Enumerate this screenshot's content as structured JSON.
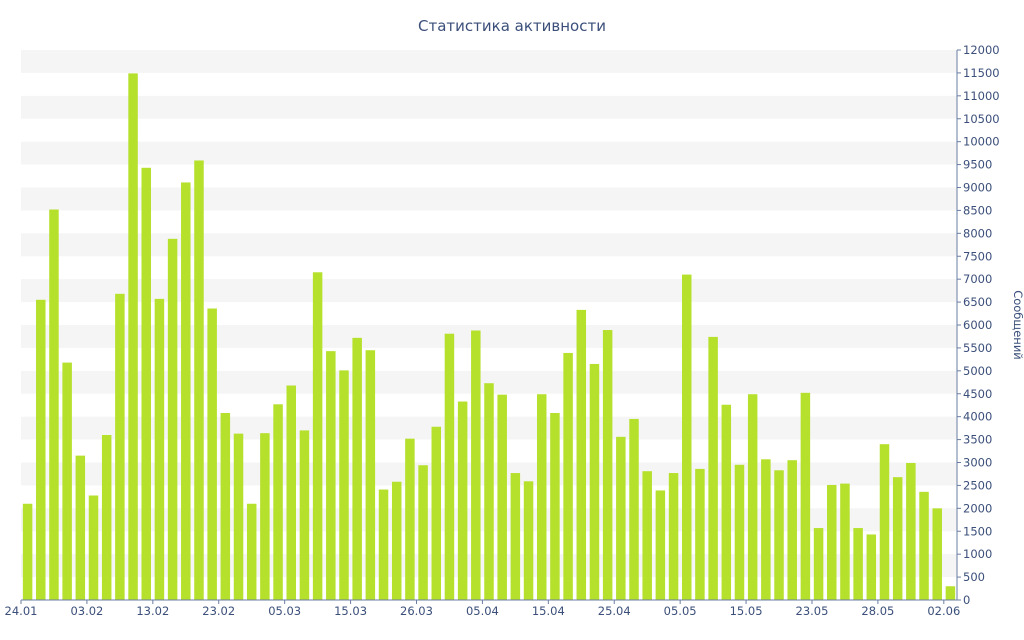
{
  "chart_data": {
    "type": "bar",
    "title": "Статистика активности",
    "xlabel": "",
    "ylabel": "Сообщений",
    "y_axis_side": "right",
    "ylim": [
      0,
      12000
    ],
    "ytick_step": 500,
    "grid": "horizontal bands",
    "x_tick_labels": [
      {
        "index": 0,
        "label": "24.01"
      },
      {
        "index": 5,
        "label": "03.02"
      },
      {
        "index": 10,
        "label": "13.02"
      },
      {
        "index": 15,
        "label": "23.02"
      },
      {
        "index": 20,
        "label": "05.03"
      },
      {
        "index": 25,
        "label": "15.03"
      },
      {
        "index": 30,
        "label": "26.03"
      },
      {
        "index": 35,
        "label": "05.04"
      },
      {
        "index": 40,
        "label": "15.04"
      },
      {
        "index": 45,
        "label": "25.04"
      },
      {
        "index": 50,
        "label": "05.05"
      },
      {
        "index": 55,
        "label": "15.05"
      },
      {
        "index": 60,
        "label": "23.05"
      },
      {
        "index": 65,
        "label": "28.05"
      },
      {
        "index": 70,
        "label": "02.06"
      }
    ],
    "values": [
      2100,
      6550,
      8520,
      5180,
      3150,
      2280,
      3600,
      6680,
      11490,
      9430,
      6570,
      7880,
      9110,
      9590,
      6360,
      4080,
      3630,
      2100,
      3640,
      4270,
      4680,
      3700,
      7150,
      5430,
      5010,
      5720,
      5450,
      2410,
      2580,
      3520,
      2940,
      3780,
      5810,
      4330,
      5880,
      4730,
      4480,
      2770,
      2590,
      4490,
      4080,
      5390,
      6330,
      5150,
      5890,
      3560,
      3950,
      2810,
      2390,
      2770,
      7100,
      2860,
      5740,
      4260,
      2950,
      4490,
      3070,
      2830,
      3050,
      4520,
      1570,
      2510,
      2540,
      1570,
      1430,
      3400,
      2680,
      2990,
      2360,
      2000,
      300
    ],
    "colors": {
      "bar": "#b5e02c",
      "band": "#f5f5f5",
      "text": "#3b4f7a",
      "axis": "#6a7da3"
    }
  }
}
